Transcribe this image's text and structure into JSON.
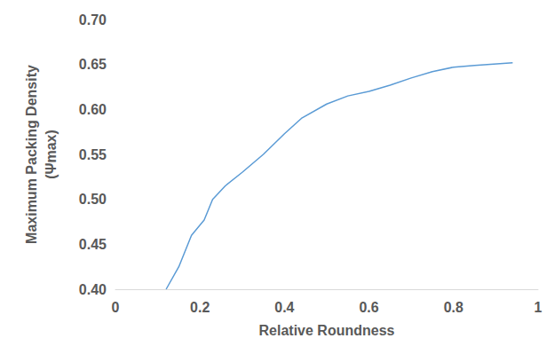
{
  "chart_data": {
    "type": "line",
    "x_label": "Relative Roundness",
    "y_label": "Maximum Packing Density\n(Ψmax)",
    "x": [
      0.12,
      0.15,
      0.18,
      0.21,
      0.23,
      0.26,
      0.3,
      0.35,
      0.4,
      0.44,
      0.5,
      0.55,
      0.6,
      0.65,
      0.7,
      0.75,
      0.8,
      0.85,
      0.94
    ],
    "values": [
      0.4,
      0.425,
      0.46,
      0.477,
      0.5,
      0.515,
      0.53,
      0.55,
      0.573,
      0.59,
      0.606,
      0.615,
      0.62,
      0.627,
      0.635,
      0.642,
      0.647,
      0.649,
      0.652
    ],
    "color": "#5b9bd5",
    "xlim": [
      0,
      1
    ],
    "xticks": [
      0,
      0.2,
      0.4,
      0.6,
      0.8,
      1
    ],
    "ylim": [
      0.4,
      0.7
    ],
    "yticks": [
      {
        "value": 0.4,
        "label": "0.40"
      },
      {
        "value": 0.45,
        "label": "0.45"
      },
      {
        "value": 0.5,
        "label": "0.50"
      },
      {
        "value": 0.55,
        "label": "0.55"
      },
      {
        "value": 0.6,
        "label": "0.60"
      },
      {
        "value": 0.65,
        "label": "0.65"
      },
      {
        "value": 0.7,
        "label": "0.70"
      }
    ],
    "grid": false
  }
}
